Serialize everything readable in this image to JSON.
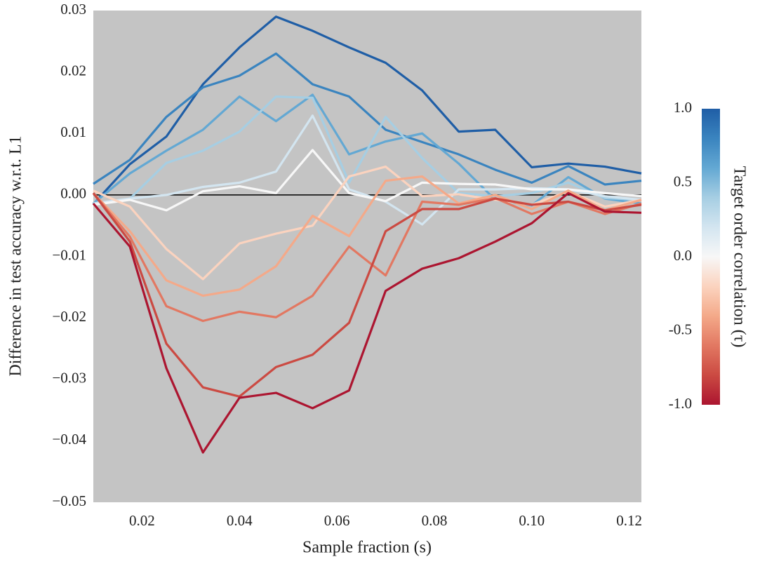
{
  "chart_data": {
    "type": "line",
    "xlabel": "Sample fraction (s)",
    "ylabel": "Difference in test accuracy w.r.t. L1",
    "x": [
      0.01,
      0.0175,
      0.025,
      0.0325,
      0.04,
      0.0475,
      0.055,
      0.0625,
      0.07,
      0.0775,
      0.085,
      0.0925,
      0.1,
      0.1075,
      0.115,
      0.1225
    ],
    "xlim": [
      0.01,
      0.1225
    ],
    "ylim": [
      -0.05,
      0.03
    ],
    "xticks": [
      0.02,
      0.04,
      0.06,
      0.08,
      {
        "value": 0.1,
        "label": "0.10"
      },
      0.12
    ],
    "yticks": [
      {
        "value": -0.05,
        "label": "−0.05"
      },
      {
        "value": -0.04,
        "label": "−0.04"
      },
      {
        "value": -0.03,
        "label": "−0.03"
      },
      {
        "value": -0.02,
        "label": "−0.02"
      },
      {
        "value": -0.01,
        "label": "−0.01"
      },
      {
        "value": 0,
        "label": "0.00"
      },
      0.01,
      0.02,
      0.03
    ],
    "hline": 0,
    "background": "#c4c4c4",
    "series": [
      {
        "color": "#1f5ea6",
        "values": [
          -0.0015,
          0.005,
          0.0095,
          0.018,
          0.024,
          0.029,
          0.0267,
          0.024,
          0.0215,
          0.017,
          0.0103,
          0.0106,
          0.0045,
          0.0051,
          0.0046,
          0.0035
        ]
      },
      {
        "color": "#3a84bf",
        "values": [
          0.0018,
          0.0057,
          0.0127,
          0.0175,
          0.0194,
          0.023,
          0.018,
          0.016,
          0.0106,
          0.0086,
          0.0066,
          0.0041,
          0.002,
          0.0047,
          0.0017,
          0.0023
        ]
      },
      {
        "color": "#63a8d3",
        "values": [
          -0.0014,
          0.0035,
          0.0072,
          0.0106,
          0.016,
          0.012,
          0.0163,
          0.0066,
          0.0087,
          0.01,
          0.0051,
          -0.0008,
          -0.0017,
          0.0029,
          -0.0006,
          -0.0014
        ]
      },
      {
        "color": "#a6cee3",
        "values": [
          -0.0014,
          -0.0006,
          0.0052,
          0.0072,
          0.0103,
          0.016,
          0.0158,
          0.002,
          0.0127,
          0.006,
          0.0003,
          -0.0002,
          0.0003,
          0.002,
          -0.0005,
          -0.0008
        ]
      },
      {
        "color": "#d3e5f0",
        "values": [
          -0.0014,
          -0.0006,
          0.0,
          0.0013,
          0.002,
          0.0038,
          0.0129,
          0.0009,
          -0.0011,
          -0.0048,
          0.0009,
          0.0009,
          0.0011,
          0.0009,
          -0.0002,
          -0.0008
        ]
      },
      {
        "color": "#f7f7f7",
        "values": [
          -0.0016,
          -0.0008,
          -0.0025,
          0.0006,
          0.0014,
          0.0003,
          0.0073,
          0.0003,
          -0.001,
          0.002,
          0.0018,
          0.0017,
          0.0009,
          0.0009,
          0.0003,
          -0.0002
        ]
      },
      {
        "color": "#fbd3bf",
        "values": [
          0.0007,
          -0.0019,
          -0.0088,
          -0.0137,
          -0.0079,
          -0.0063,
          -0.005,
          0.003,
          0.0046,
          -0.0002,
          0.0001,
          -0.0008,
          -0.0016,
          0.0006,
          -0.0019,
          -0.0008
        ]
      },
      {
        "color": "#f4a989",
        "values": [
          0.0003,
          -0.0059,
          -0.0139,
          -0.0164,
          -0.0154,
          -0.0116,
          -0.0034,
          -0.0067,
          0.0023,
          0.003,
          -0.0014,
          0.0,
          -0.0023,
          0.0007,
          -0.0025,
          -0.0008
        ]
      },
      {
        "color": "#e27862",
        "values": [
          0.0003,
          -0.0068,
          -0.0181,
          -0.0205,
          -0.019,
          -0.0199,
          -0.0164,
          -0.0084,
          -0.0131,
          -0.0011,
          -0.0016,
          -0.0005,
          -0.0031,
          -0.0011,
          -0.0031,
          -0.0014
        ]
      },
      {
        "color": "#cb4a42",
        "values": [
          0.0003,
          -0.0076,
          -0.0242,
          -0.0313,
          -0.0328,
          -0.028,
          -0.026,
          -0.0208,
          -0.0059,
          -0.0023,
          -0.0023,
          -0.0006,
          -0.0016,
          -0.0011,
          -0.0025,
          -0.0016
        ]
      },
      {
        "color": "#ac1530",
        "values": [
          -0.0014,
          -0.0084,
          -0.0282,
          -0.0419,
          -0.033,
          -0.0322,
          -0.0347,
          -0.0318,
          -0.0156,
          -0.012,
          -0.0103,
          -0.0076,
          -0.0046,
          0.0003,
          -0.0027,
          -0.0029
        ]
      }
    ],
    "colorbar": {
      "label": "Target order correlation (τ)",
      "lim": [
        -1,
        1
      ],
      "ticks": [
        {
          "value": 1,
          "label": "1.0"
        },
        0.5,
        {
          "value": 0,
          "label": "0.0"
        },
        -0.5,
        {
          "value": -1,
          "label": "-1.0"
        }
      ],
      "colors": [
        "#ac1530",
        "#cb4a42",
        "#e27862",
        "#f4a989",
        "#fbd3bf",
        "#f7f7f7",
        "#d3e5f0",
        "#a6cee3",
        "#63a8d3",
        "#3a84bf",
        "#1f5ea6"
      ]
    }
  }
}
